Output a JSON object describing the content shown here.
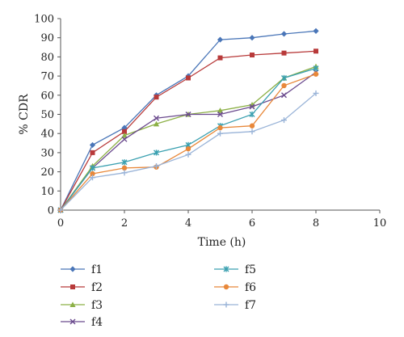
{
  "chart_data": {
    "type": "line",
    "title": "",
    "xlabel": "Time (h)",
    "ylabel": "% CDR",
    "xlim": [
      0,
      10
    ],
    "ylim": [
      0,
      100
    ],
    "xticks": [
      0,
      2,
      4,
      6,
      8,
      10
    ],
    "yticks": [
      0,
      10,
      20,
      30,
      40,
      50,
      60,
      70,
      80,
      90,
      100
    ],
    "x": [
      0,
      1,
      2,
      3,
      4,
      5,
      6,
      7,
      8
    ],
    "grid": false,
    "legend_position": "bottom",
    "series": [
      {
        "name": "f1",
        "color": "#4a76b8",
        "marker": "diamond",
        "values": [
          0,
          34,
          43,
          60,
          70,
          89,
          90,
          92,
          93.5
        ]
      },
      {
        "name": "f2",
        "color": "#b83a3a",
        "marker": "square",
        "values": [
          0,
          30,
          41,
          59,
          69,
          79.5,
          81,
          82,
          83
        ]
      },
      {
        "name": "f3",
        "color": "#8cb046",
        "marker": "triangle",
        "values": [
          0,
          23,
          39,
          45,
          50,
          52,
          55,
          69,
          75
        ]
      },
      {
        "name": "f4",
        "color": "#6b4a8e",
        "marker": "x",
        "values": [
          0,
          22,
          37,
          48,
          50,
          50,
          54,
          60,
          72
        ]
      },
      {
        "name": "f5",
        "color": "#3aa0b0",
        "marker": "star",
        "values": [
          0,
          22,
          25,
          30,
          34,
          44,
          50,
          69,
          74
        ]
      },
      {
        "name": "f6",
        "color": "#e8883a",
        "marker": "circle",
        "values": [
          0,
          19,
          22,
          22.5,
          32,
          43,
          44,
          65,
          71
        ]
      },
      {
        "name": "f7",
        "color": "#9ab4d8",
        "marker": "plus",
        "values": [
          0,
          17,
          19.5,
          23,
          29,
          40,
          41,
          47,
          61
        ]
      }
    ]
  }
}
